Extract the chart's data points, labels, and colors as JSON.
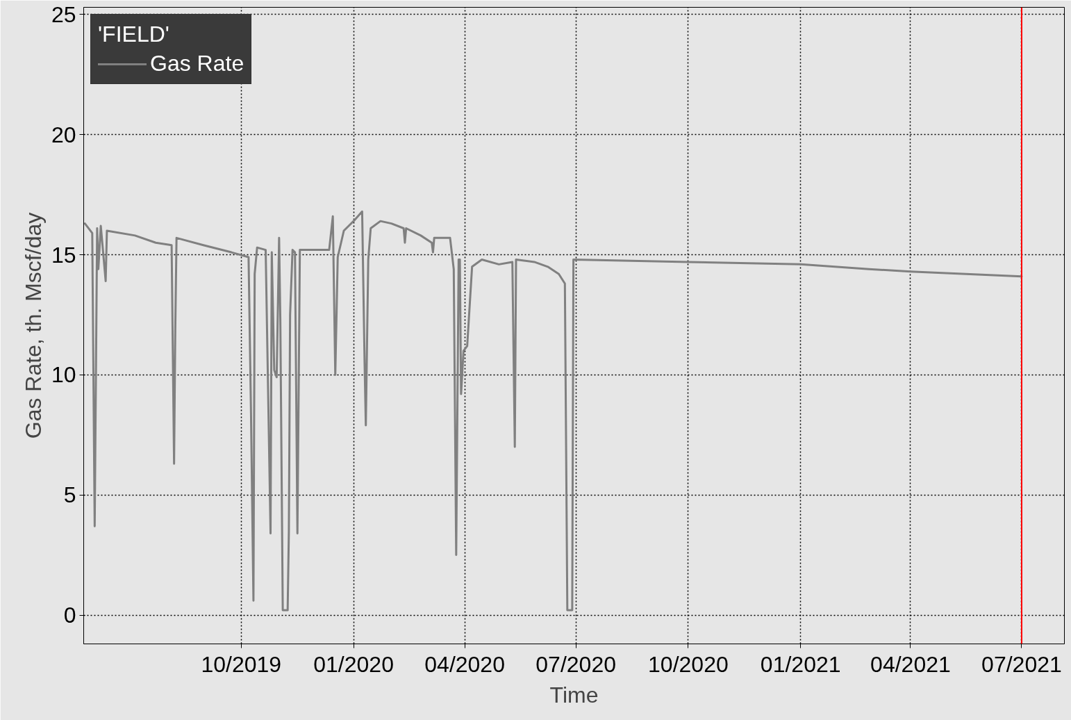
{
  "chart_data": {
    "type": "line",
    "xlabel": "Time",
    "ylabel": "Gas Rate, th. Mscf/day",
    "legend_title": "'FIELD'",
    "legend": "top left",
    "grid": true,
    "line_style": "solid",
    "marker": "none",
    "xlim": [
      "2019-05-25",
      "2021-08-05"
    ],
    "ylim": [
      -1.2,
      25.3
    ],
    "xticks": [
      {
        "value": "2019-10-01",
        "label": "10/2019"
      },
      {
        "value": "2020-01-01",
        "label": "01/2020"
      },
      {
        "value": "2020-04-01",
        "label": "04/2020"
      },
      {
        "value": "2020-07-01",
        "label": "07/2020"
      },
      {
        "value": "2020-10-01",
        "label": "10/2020"
      },
      {
        "value": "2021-01-01",
        "label": "01/2021"
      },
      {
        "value": "2021-04-01",
        "label": "04/2021"
      },
      {
        "value": "2021-07-01",
        "label": "07/2021"
      }
    ],
    "yticks": [
      0,
      5,
      10,
      15,
      20,
      25
    ],
    "ref_lines": [
      {
        "axis": "x",
        "value": "2021-07-01",
        "label": null,
        "color": "#ff0000"
      }
    ],
    "series": [
      {
        "name": "Gas Rate",
        "color": "#808080",
        "x": [
          "2019-05-26",
          "2019-06-01",
          "2019-06-03",
          "2019-06-05",
          "2019-06-06",
          "2019-06-08",
          "2019-06-12",
          "2019-06-13",
          "2019-07-06",
          "2019-07-23",
          "2019-08-05",
          "2019-08-07",
          "2019-08-08",
          "2019-08-09",
          "2019-08-31",
          "2019-09-23",
          "2019-10-07",
          "2019-10-09",
          "2019-10-11",
          "2019-10-12",
          "2019-10-14",
          "2019-10-21",
          "2019-10-25",
          "2019-10-26",
          "2019-10-28",
          "2019-10-30",
          "2019-11-01",
          "2019-11-02",
          "2019-11-04",
          "2019-11-08",
          "2019-11-09",
          "2019-11-10",
          "2019-11-12",
          "2019-11-14",
          "2019-11-16",
          "2019-11-18",
          "2019-12-12",
          "2019-12-15",
          "2019-12-17",
          "2019-12-19",
          "2019-12-24",
          "2020-01-01",
          "2020-01-08",
          "2020-01-10",
          "2020-01-11",
          "2020-01-13",
          "2020-01-15",
          "2020-01-23",
          "2020-02-01",
          "2020-02-11",
          "2020-02-12",
          "2020-02-13",
          "2020-02-25",
          "2020-03-05",
          "2020-03-06",
          "2020-03-07",
          "2020-03-20",
          "2020-03-23",
          "2020-03-25",
          "2020-03-27",
          "2020-03-28",
          "2020-03-29",
          "2020-03-31",
          "2020-04-03",
          "2020-04-07",
          "2020-04-15",
          "2020-04-29",
          "2020-05-10",
          "2020-05-12",
          "2020-05-13",
          "2020-05-28",
          "2020-06-08",
          "2020-06-17",
          "2020-06-22",
          "2020-06-24",
          "2020-06-28",
          "2020-06-29",
          "2020-10-01",
          "2021-01-01",
          "2021-02-26",
          "2021-04-01",
          "2021-07-01"
        ],
        "values": [
          16.3,
          15.9,
          3.7,
          16.1,
          14.4,
          16.2,
          13.9,
          16.0,
          15.8,
          15.5,
          15.4,
          6.3,
          11.9,
          15.7,
          15.4,
          15.1,
          14.9,
          8.4,
          0.6,
          14.2,
          15.3,
          15.2,
          3.4,
          15.1,
          10.2,
          9.9,
          15.7,
          12.3,
          0.2,
          0.2,
          3.5,
          12.5,
          15.2,
          15.1,
          3.4,
          15.2,
          15.2,
          16.6,
          10.0,
          14.9,
          16.0,
          16.4,
          16.8,
          10.5,
          7.9,
          14.8,
          16.1,
          16.4,
          16.3,
          16.1,
          15.5,
          16.1,
          15.8,
          15.5,
          15.1,
          15.7,
          15.7,
          14.4,
          2.5,
          14.8,
          14.8,
          9.2,
          11.0,
          11.2,
          14.5,
          14.8,
          14.6,
          14.7,
          7.0,
          14.8,
          14.7,
          14.5,
          14.2,
          13.8,
          0.2,
          0.2,
          14.8,
          14.7,
          14.6,
          14.4,
          14.3,
          14.1
        ]
      }
    ]
  }
}
